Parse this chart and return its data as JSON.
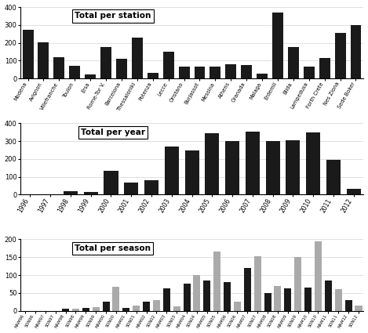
{
  "station_labels": [
    "Modena",
    "Avignon",
    "Villefranche",
    "Toulon",
    "Ersa",
    "Rome-Tor V.",
    "Barcelona",
    "Thessaloniki",
    "Potenza",
    "Lecce",
    "Oristano",
    "Burjassot",
    "Messina",
    "Athens",
    "Granada",
    "Malaga",
    "Erdemli",
    "Blida",
    "Lampedusa",
    "Forth Crete",
    "Nes Ziona",
    "Sede Boker"
  ],
  "station_values": [
    275,
    205,
    120,
    70,
    22,
    178,
    112,
    228,
    32,
    150,
    65,
    65,
    68,
    82,
    75,
    28,
    368,
    175,
    65,
    115,
    255,
    298
  ],
  "year_labels": [
    "1996",
    "1997",
    "1998",
    "1999",
    "2000",
    "2001",
    "2002",
    "2003",
    "2004",
    "2005",
    "2006",
    "2007",
    "2008",
    "2009",
    "2010",
    "2011",
    "2012"
  ],
  "year_values": [
    0,
    0,
    18,
    15,
    133,
    68,
    83,
    270,
    248,
    342,
    300,
    352,
    300,
    305,
    350,
    193,
    33
  ],
  "season_labels": [
    "MAM96",
    "SON96",
    "MAM97",
    "SON97",
    "MAM98",
    "SON98",
    "MAM99",
    "SON99",
    "MAM00",
    "SON00",
    "MAM01",
    "SON01",
    "MAM02",
    "SON02",
    "MAM03",
    "SON03",
    "MAM04",
    "SON04",
    "MAM05",
    "SON05",
    "MAM06",
    "SON06",
    "MAM07",
    "SON07",
    "MAM08",
    "SON08",
    "MAM09",
    "SON09",
    "MAM10",
    "SON10",
    "MAM11",
    "SON11",
    "MAM12",
    "SON12"
  ],
  "season_MAM": [
    0,
    0,
    0,
    0,
    5,
    0,
    8,
    0,
    25,
    0,
    8,
    0,
    25,
    0,
    62,
    0,
    75,
    0,
    85,
    0,
    80,
    0,
    120,
    0,
    50,
    0,
    62,
    0,
    65,
    0,
    85,
    0,
    30,
    0
  ],
  "season_SON": [
    0,
    0,
    0,
    0,
    0,
    5,
    0,
    10,
    0,
    67,
    0,
    15,
    0,
    30,
    0,
    12,
    0,
    100,
    0,
    165,
    0,
    25,
    0,
    152,
    0,
    70,
    0,
    150,
    0,
    195,
    0,
    60,
    0,
    15
  ],
  "bar_color": "#1a1a1a",
  "grey_color": "#aaaaaa",
  "ylim_station": [
    0,
    400
  ],
  "ylim_year": [
    0,
    400
  ],
  "ylim_season": [
    0,
    200
  ],
  "yticks_station": [
    0,
    100,
    200,
    300,
    400
  ],
  "yticks_year": [
    0,
    100,
    200,
    300,
    400
  ],
  "yticks_season": [
    0,
    50,
    100,
    150,
    200
  ]
}
